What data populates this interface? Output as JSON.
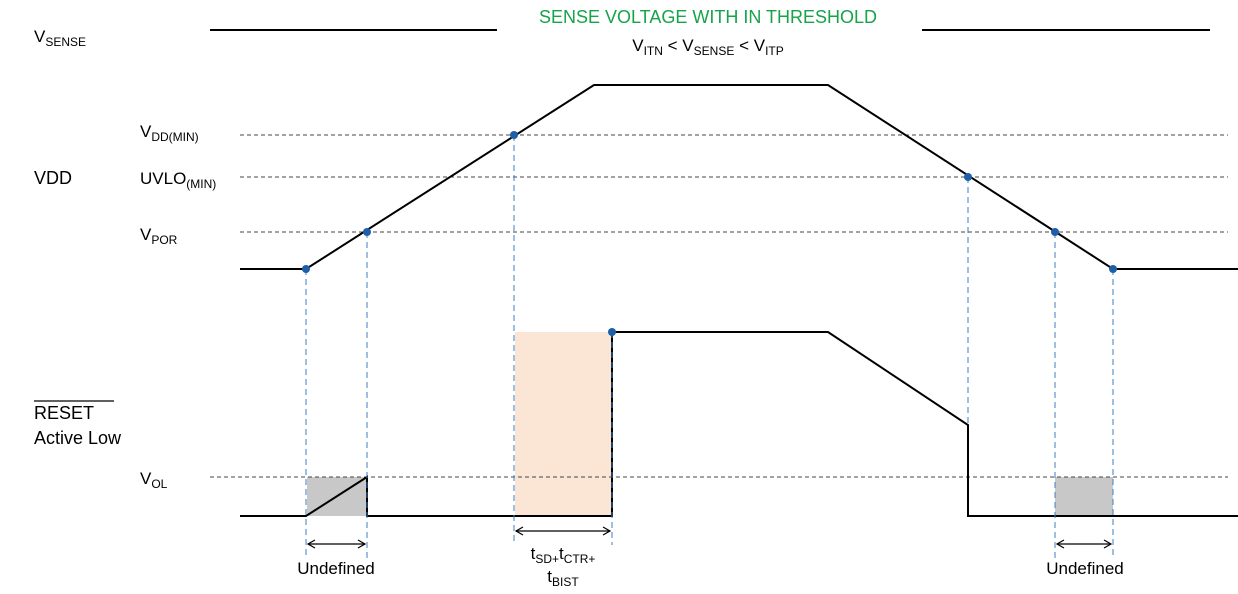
{
  "signals": {
    "vsense": {
      "main": "V",
      "sub": "SENSE"
    },
    "vdd": "VDD",
    "reset": {
      "line1": "RESET",
      "line2": "Active Low"
    }
  },
  "title": {
    "text": "SENSE VOLTAGE WITH IN THRESHOLD",
    "color": "#16a34a",
    "condition": {
      "v1": "V",
      "s1": "ITN",
      "lt1": " < V",
      "s2": "SENSE",
      "lt2": " < V",
      "s3": "ITP"
    }
  },
  "thresholds": {
    "vdd_min": {
      "main": "V",
      "sub": "DD(MIN)"
    },
    "uvlo_min": {
      "main": "UVLO",
      "sub": "(MIN)"
    },
    "vpor": {
      "main": "V",
      "sub": "POR"
    },
    "vol": {
      "main": "V",
      "sub": "OL"
    }
  },
  "annotations": {
    "undefined_left": "Undefined",
    "undefined_right": "Undefined",
    "delay": {
      "t1": "t",
      "s1": "SD+",
      "t2": "t",
      "s2": "CTR+",
      "t3": "t",
      "s3": "BIST"
    }
  },
  "colors": {
    "guide": "#3b82c4",
    "marker": "#1f5fa8",
    "undefined_fill": "#c8c8c8",
    "delay_fill": "#fbe6d6"
  }
}
